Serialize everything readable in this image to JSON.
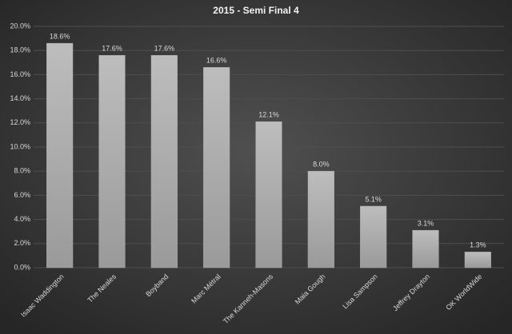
{
  "chart_data": {
    "type": "bar",
    "title": "2015 - Semi Final 4",
    "categories": [
      "Isaac Waddington",
      "The Neales",
      "Boyband",
      "Marc Métral",
      "The Kanneh-Masons",
      "Maia Gough",
      "Lisa Sampson",
      "Jeffrey Drayton",
      "OK WorldWide"
    ],
    "values": [
      18.6,
      17.6,
      17.6,
      16.6,
      12.1,
      8.0,
      5.1,
      3.1,
      1.3
    ],
    "value_labels": [
      "18.6%",
      "17.6%",
      "17.6%",
      "16.6%",
      "12.1%",
      "8.0%",
      "5.1%",
      "3.1%",
      "1.3%"
    ],
    "color": "#a9a9a9",
    "ylim": [
      0,
      20
    ],
    "yticks": [
      {
        "value": 0,
        "label": "0.0%"
      },
      {
        "value": 2,
        "label": "2.0%"
      },
      {
        "value": 4,
        "label": "4.0%"
      },
      {
        "value": 6,
        "label": "6.0%"
      },
      {
        "value": 8,
        "label": "8.0%"
      },
      {
        "value": 10,
        "label": "10.0%"
      },
      {
        "value": 12,
        "label": "12.0%"
      },
      {
        "value": 14,
        "label": "14.0%"
      },
      {
        "value": 16,
        "label": "16.0%"
      },
      {
        "value": 18,
        "label": "18.0%"
      },
      {
        "value": 20,
        "label": "20.0%"
      }
    ],
    "grid": true
  }
}
